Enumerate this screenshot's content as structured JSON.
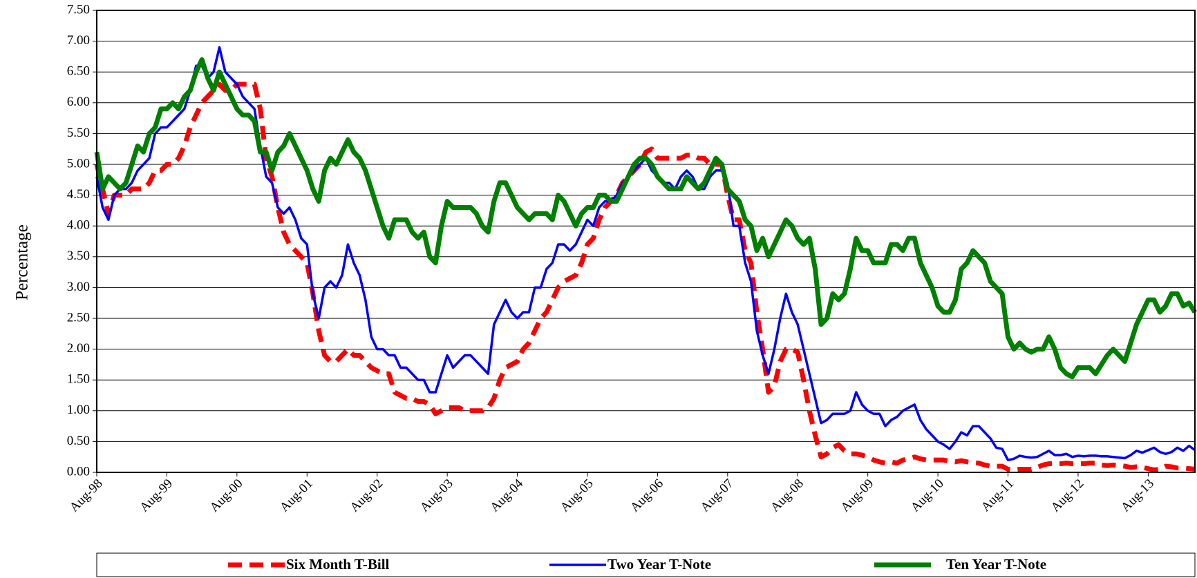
{
  "chart_data": {
    "type": "line",
    "y_label": "Percentage",
    "legend": "bottom",
    "grid": true,
    "ylim": [
      0,
      7.5
    ],
    "yticks": [
      {
        "value": 0,
        "label": "0.00"
      },
      {
        "value": 0.5,
        "label": "0.50"
      },
      {
        "value": 1,
        "label": "1.00"
      },
      {
        "value": 1.5,
        "label": "1.50"
      },
      {
        "value": 2,
        "label": "2.00"
      },
      {
        "value": 2.5,
        "label": "2.50"
      },
      {
        "value": 3,
        "label": "3.00"
      },
      {
        "value": 3.5,
        "label": "3.50"
      },
      {
        "value": 4,
        "label": "4.00"
      },
      {
        "value": 4.5,
        "label": "4.50"
      },
      {
        "value": 5,
        "label": "5.00"
      },
      {
        "value": 5.5,
        "label": "5.50"
      },
      {
        "value": 6,
        "label": "6.00"
      },
      {
        "value": 6.5,
        "label": "6.50"
      },
      {
        "value": 7,
        "label": "7.00"
      },
      {
        "value": 7.5,
        "label": "7.50"
      }
    ],
    "categories": [
      "Aug-98",
      null,
      null,
      null,
      null,
      null,
      null,
      null,
      null,
      null,
      null,
      null,
      "Aug-99",
      null,
      null,
      null,
      null,
      null,
      null,
      null,
      null,
      null,
      null,
      null,
      "Aug-00",
      null,
      null,
      null,
      null,
      null,
      null,
      null,
      null,
      null,
      null,
      null,
      "Aug-01",
      null,
      null,
      null,
      null,
      null,
      null,
      null,
      null,
      null,
      null,
      null,
      "Aug-02",
      null,
      null,
      null,
      null,
      null,
      null,
      null,
      null,
      null,
      null,
      null,
      "Aug-03",
      null,
      null,
      null,
      null,
      null,
      null,
      null,
      null,
      null,
      null,
      null,
      "Aug-04",
      null,
      null,
      null,
      null,
      null,
      null,
      null,
      null,
      null,
      null,
      null,
      "Aug-05",
      null,
      null,
      null,
      null,
      null,
      null,
      null,
      null,
      null,
      null,
      null,
      "Aug-06",
      null,
      null,
      null,
      null,
      null,
      null,
      null,
      null,
      null,
      null,
      null,
      "Aug-07",
      null,
      null,
      null,
      null,
      null,
      null,
      null,
      null,
      null,
      null,
      null,
      "Aug-08",
      null,
      null,
      null,
      null,
      null,
      null,
      null,
      null,
      null,
      null,
      null,
      "Aug-09",
      null,
      null,
      null,
      null,
      null,
      null,
      null,
      null,
      null,
      null,
      null,
      "Aug-10",
      null,
      null,
      null,
      null,
      null,
      null,
      null,
      null,
      null,
      null,
      null,
      "Aug-11",
      null,
      null,
      null,
      null,
      null,
      null,
      null,
      null,
      null,
      null,
      null,
      "Aug-12",
      null,
      null,
      null,
      null,
      null,
      null,
      null,
      null,
      null,
      null,
      null,
      "Aug-13",
      null,
      null,
      null,
      null,
      null,
      null,
      null,
      null
    ],
    "series": [
      {
        "name": "Six Month T-Bill",
        "color": "#ff0000",
        "line_style": "dashed",
        "values": [
          5.0,
          4.6,
          4.2,
          4.5,
          4.5,
          4.5,
          4.6,
          4.6,
          4.6,
          4.7,
          4.9,
          4.9,
          5.0,
          5.0,
          5.1,
          5.3,
          5.6,
          5.8,
          6.0,
          6.1,
          6.2,
          6.3,
          6.2,
          6.2,
          6.3,
          6.3,
          6.3,
          6.3,
          5.9,
          5.1,
          4.8,
          4.3,
          3.9,
          3.7,
          3.6,
          3.5,
          3.4,
          2.9,
          2.3,
          1.9,
          1.8,
          1.8,
          1.9,
          2.0,
          1.9,
          1.9,
          1.8,
          1.7,
          1.65,
          1.6,
          1.6,
          1.3,
          1.25,
          1.2,
          1.2,
          1.15,
          1.15,
          1.1,
          0.95,
          1.0,
          1.05,
          1.05,
          1.05,
          1.0,
          1.0,
          1.0,
          1.0,
          1.05,
          1.2,
          1.5,
          1.7,
          1.75,
          1.8,
          2.0,
          2.1,
          2.3,
          2.5,
          2.6,
          2.8,
          3.0,
          3.1,
          3.15,
          3.2,
          3.4,
          3.7,
          3.8,
          4.1,
          4.3,
          4.4,
          4.5,
          4.7,
          4.8,
          4.9,
          5.0,
          5.2,
          5.25,
          5.1,
          5.1,
          5.1,
          5.1,
          5.1,
          5.15,
          5.15,
          5.1,
          5.1,
          5.0,
          5.0,
          5.0,
          4.5,
          4.1,
          4.1,
          3.6,
          3.4,
          2.6,
          2.0,
          1.3,
          1.4,
          1.8,
          2.0,
          2.0,
          1.95,
          1.5,
          1.0,
          0.6,
          0.25,
          0.3,
          0.4,
          0.45,
          0.35,
          0.3,
          0.3,
          0.28,
          0.25,
          0.2,
          0.17,
          0.15,
          0.17,
          0.15,
          0.2,
          0.22,
          0.25,
          0.22,
          0.2,
          0.2,
          0.2,
          0.2,
          0.18,
          0.17,
          0.19,
          0.17,
          0.16,
          0.15,
          0.12,
          0.1,
          0.1,
          0.1,
          0.05,
          0.04,
          0.05,
          0.05,
          0.05,
          0.08,
          0.12,
          0.14,
          0.14,
          0.14,
          0.15,
          0.14,
          0.14,
          0.14,
          0.15,
          0.15,
          0.12,
          0.11,
          0.12,
          0.11,
          0.1,
          0.08,
          0.09,
          0.08,
          0.06,
          0.04,
          0.05,
          0.1,
          0.09,
          0.07,
          0.07,
          0.06,
          0.05
        ]
      },
      {
        "name": "Two Year T-Note",
        "color": "#0000ff",
        "line_style": "solid",
        "values": [
          4.8,
          4.3,
          4.1,
          4.5,
          4.6,
          4.6,
          4.7,
          4.9,
          5.0,
          5.1,
          5.5,
          5.6,
          5.6,
          5.7,
          5.8,
          5.9,
          6.2,
          6.6,
          6.6,
          6.4,
          6.5,
          6.9,
          6.5,
          6.4,
          6.3,
          6.1,
          6.0,
          5.9,
          5.3,
          4.8,
          4.7,
          4.3,
          4.2,
          4.3,
          4.1,
          3.8,
          3.7,
          2.9,
          2.5,
          3.0,
          3.1,
          3.0,
          3.2,
          3.7,
          3.4,
          3.2,
          2.8,
          2.2,
          2.0,
          2.0,
          1.9,
          1.9,
          1.7,
          1.7,
          1.6,
          1.5,
          1.5,
          1.3,
          1.3,
          1.6,
          1.9,
          1.7,
          1.8,
          1.9,
          1.9,
          1.8,
          1.7,
          1.6,
          2.4,
          2.6,
          2.8,
          2.6,
          2.5,
          2.6,
          2.6,
          3.0,
          3.0,
          3.3,
          3.4,
          3.7,
          3.7,
          3.6,
          3.7,
          3.9,
          4.1,
          4.0,
          4.3,
          4.4,
          4.4,
          4.5,
          4.7,
          4.8,
          4.9,
          5.0,
          5.1,
          4.9,
          4.8,
          4.7,
          4.7,
          4.6,
          4.8,
          4.9,
          4.8,
          4.6,
          4.6,
          4.8,
          4.9,
          4.9,
          4.7,
          4.0,
          4.0,
          3.4,
          3.1,
          2.3,
          1.9,
          1.6,
          2.0,
          2.5,
          2.9,
          2.6,
          2.4,
          2.0,
          1.6,
          1.2,
          0.8,
          0.85,
          0.95,
          0.95,
          0.95,
          1.0,
          1.3,
          1.1,
          1.0,
          0.95,
          0.95,
          0.75,
          0.85,
          0.9,
          1.0,
          1.05,
          1.1,
          0.85,
          0.7,
          0.6,
          0.5,
          0.45,
          0.38,
          0.5,
          0.65,
          0.6,
          0.75,
          0.75,
          0.65,
          0.55,
          0.4,
          0.38,
          0.2,
          0.22,
          0.27,
          0.25,
          0.24,
          0.25,
          0.3,
          0.35,
          0.28,
          0.28,
          0.3,
          0.25,
          0.27,
          0.26,
          0.27,
          0.27,
          0.26,
          0.26,
          0.25,
          0.24,
          0.23,
          0.28,
          0.35,
          0.32,
          0.36,
          0.4,
          0.33,
          0.3,
          0.33,
          0.4,
          0.35,
          0.43,
          0.36
        ]
      },
      {
        "name": "Ten Year T-Note",
        "color": "#008000",
        "line_style": "solid",
        "values": [
          5.2,
          4.6,
          4.8,
          4.7,
          4.6,
          4.7,
          5.0,
          5.3,
          5.2,
          5.5,
          5.6,
          5.9,
          5.9,
          6.0,
          5.9,
          6.1,
          6.2,
          6.5,
          6.7,
          6.4,
          6.2,
          6.5,
          6.3,
          6.1,
          5.9,
          5.8,
          5.8,
          5.7,
          5.2,
          5.2,
          4.9,
          5.2,
          5.3,
          5.5,
          5.3,
          5.1,
          4.9,
          4.6,
          4.4,
          4.9,
          5.1,
          5.0,
          5.2,
          5.4,
          5.2,
          5.1,
          4.9,
          4.6,
          4.3,
          4.0,
          3.8,
          4.1,
          4.1,
          4.1,
          3.9,
          3.8,
          3.9,
          3.5,
          3.4,
          4.0,
          4.4,
          4.3,
          4.3,
          4.3,
          4.3,
          4.2,
          4.0,
          3.9,
          4.4,
          4.7,
          4.7,
          4.5,
          4.3,
          4.2,
          4.1,
          4.2,
          4.2,
          4.2,
          4.1,
          4.5,
          4.4,
          4.2,
          4.0,
          4.2,
          4.3,
          4.3,
          4.5,
          4.5,
          4.4,
          4.4,
          4.6,
          4.8,
          5.0,
          5.1,
          5.1,
          5.0,
          4.8,
          4.7,
          4.6,
          4.6,
          4.6,
          4.8,
          4.7,
          4.6,
          4.7,
          4.9,
          5.1,
          5.0,
          4.6,
          4.5,
          4.4,
          4.1,
          4.0,
          3.6,
          3.8,
          3.5,
          3.7,
          3.9,
          4.1,
          4.0,
          3.8,
          3.7,
          3.8,
          3.3,
          2.4,
          2.5,
          2.9,
          2.8,
          2.9,
          3.3,
          3.8,
          3.6,
          3.6,
          3.4,
          3.4,
          3.4,
          3.7,
          3.7,
          3.6,
          3.8,
          3.8,
          3.4,
          3.2,
          3.0,
          2.7,
          2.6,
          2.6,
          2.8,
          3.3,
          3.4,
          3.6,
          3.5,
          3.4,
          3.1,
          3.0,
          2.9,
          2.2,
          2.0,
          2.1,
          2.0,
          1.95,
          2.0,
          2.0,
          2.2,
          2.0,
          1.7,
          1.6,
          1.55,
          1.7,
          1.7,
          1.7,
          1.6,
          1.75,
          1.9,
          2.0,
          1.9,
          1.8,
          2.1,
          2.4,
          2.6,
          2.8,
          2.8,
          2.6,
          2.7,
          2.9,
          2.9,
          2.7,
          2.75,
          2.6
        ]
      }
    ]
  }
}
